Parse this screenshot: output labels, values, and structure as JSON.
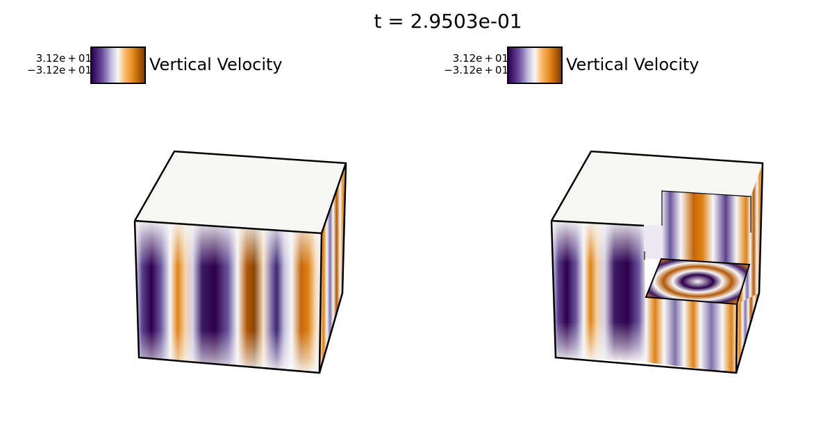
{
  "title": "t = 2.9503e-01",
  "panels": [
    {
      "colorbar": {
        "max_label": "3.12e + 01",
        "min_label": "−3.12e + 01",
        "field_label": "Vertical Velocity"
      },
      "view": "full box"
    },
    {
      "colorbar": {
        "max_label": "3.12e + 01",
        "min_label": "−3.12e + 01",
        "field_label": "Vertical Velocity"
      },
      "view": "cutaway box"
    }
  ],
  "colormap": {
    "name": "PuOr diverging",
    "negative": "#2d004b",
    "mid_negative": "#8073ac",
    "zero": "#f7f7f7",
    "mid_positive": "#fdb863",
    "positive": "#7f3b08",
    "edge_color": "#000000"
  }
}
